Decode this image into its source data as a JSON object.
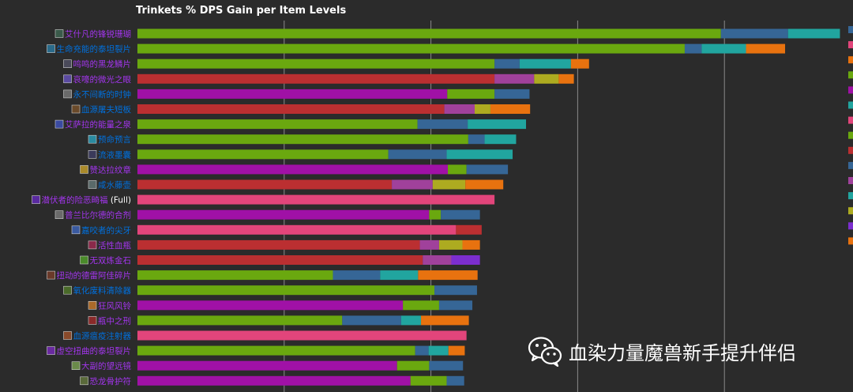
{
  "chart_data": {
    "type": "bar",
    "title": "Trinkets % DPS Gain per Item Levels",
    "categories": [
      "艾什凡的锋锐珊瑚",
      "生命充能的泰坦裂片",
      "鸣鸣的黑龙鳞片",
      "哀嚎的微光之眼",
      "永不间断的时钟",
      "血源屠夫短板",
      "艾萨拉的能量之泉",
      "预命预言",
      "流液墨囊",
      "赞达拉纹章",
      "咸水藤壶",
      "潜伏者的险恶畸福 (Full)",
      "普兰比尔德的合剂",
      "嘉咬者的尖牙",
      "活性血瓶",
      "无双炼金石",
      "扭动的德雷阿佳碎片",
      "氧化废料清除器",
      "狂风风铃",
      "瓶中之刑",
      "血源瘟疫注射器",
      "虚空扭曲的泰坦裂片",
      "大副的望远镜",
      "恐龙骨护符"
    ],
    "label_colors": {
      "epic": "#a335ee",
      "rare": "#0070dd",
      "white": "#ffffff"
    },
    "category_quality": [
      "epic",
      "rare",
      "epic",
      "epic",
      "rare",
      "rare",
      "epic",
      "rare",
      "rare",
      "epic",
      "rare",
      "epic",
      "epic",
      "rare",
      "epic",
      "epic",
      "epic",
      "rare",
      "epic",
      "epic",
      "rare",
      "epic",
      "epic",
      "epic"
    ],
    "category_icon_colors": [
      "#3a5a4a",
      "#2a6a8a",
      "#4a4a5a",
      "#5a4aa0",
      "#6a6a6a",
      "#6a4a2a",
      "#3a4aa0",
      "#2a8aa0",
      "#3a3a5a",
      "#aa8a2a",
      "#5a6a6a",
      "#5a2aa0",
      "#6a6a6a",
      "#3a5aa0",
      "#8a2a4a",
      "#4a8a2a",
      "#6a3a2a",
      "#4a6a2a",
      "#aa6a2a",
      "#8a2a2a",
      "#8a4a2a",
      "#6a2aa0",
      "#6a8a4a",
      "#5a6a3a"
    ],
    "bar_segments": [
      [
        [
          "#6aa80f",
          1.0
        ],
        [
          "#366696",
          0.115
        ],
        [
          "#21a59f",
          0.089
        ]
      ],
      [
        [
          "#6aa80f",
          0.938
        ],
        [
          "#366696",
          0.029
        ],
        [
          "#21a59f",
          0.076
        ],
        [
          "#e8720f",
          0.067
        ]
      ],
      [
        [
          "#6aa80f",
          0.612
        ],
        [
          "#366696",
          0.043
        ],
        [
          "#21a59f",
          0.088
        ],
        [
          "#e8720f",
          0.031
        ]
      ],
      [
        [
          "#bb2f31",
          0.612
        ],
        [
          "#a0419b",
          0.068
        ],
        [
          "#adab20",
          0.042
        ],
        [
          "#e8720f",
          0.026
        ]
      ],
      [
        [
          "#a011a6",
          0.531
        ],
        [
          "#6aa80f",
          0.081
        ],
        [
          "#366696",
          0.06
        ]
      ],
      [
        [
          "#bb2f31",
          0.526
        ],
        [
          "#a0419b",
          0.052
        ],
        [
          "#adab20",
          0.027
        ],
        [
          "#e8720f",
          0.068
        ]
      ],
      [
        [
          "#6aa80f",
          0.48
        ],
        [
          "#366696",
          0.086
        ],
        [
          "#21a59f",
          0.1
        ]
      ],
      [
        [
          "#6aa80f",
          0.567
        ],
        [
          "#366696",
          0.028
        ],
        [
          "#21a59f",
          0.054
        ]
      ],
      [
        [
          "#6aa80f",
          0.43
        ],
        [
          "#366696",
          0.1
        ],
        [
          "#21a59f",
          0.113
        ]
      ],
      [
        [
          "#a011a6",
          0.532
        ],
        [
          "#6aa80f",
          0.032
        ],
        [
          "#366696",
          0.071
        ]
      ],
      [
        [
          "#bb2f31",
          0.436
        ],
        [
          "#a0419b",
          0.07
        ],
        [
          "#adab20",
          0.056
        ],
        [
          "#e8720f",
          0.065
        ]
      ],
      [
        [
          "#e2457b",
          0.612
        ]
      ],
      [
        [
          "#a011a6",
          0.5
        ],
        [
          "#6aa80f",
          0.02
        ],
        [
          "#366696",
          0.067
        ]
      ],
      [
        [
          "#e2457b",
          0.546
        ],
        [
          "#bb2f31",
          0.044
        ]
      ],
      [
        [
          "#bb2f31",
          0.484
        ],
        [
          "#a0419b",
          0.033
        ],
        [
          "#adab20",
          0.04
        ],
        [
          "#e8720f",
          0.03
        ]
      ],
      [
        [
          "#bb2f31",
          0.489
        ],
        [
          "#a0419b",
          0.049
        ],
        [
          "#7c2ecf",
          0.049
        ]
      ],
      [
        [
          "#6aa80f",
          0.335
        ],
        [
          "#366696",
          0.081
        ],
        [
          "#21a59f",
          0.065
        ],
        [
          "#e8720f",
          0.102
        ]
      ],
      [
        [
          "#6aa80f",
          0.509
        ],
        [
          "#366696",
          0.073
        ]
      ],
      [
        [
          "#a011a6",
          0.455
        ],
        [
          "#6aa80f",
          0.062
        ],
        [
          "#366696",
          0.057
        ]
      ],
      [
        [
          "#6aa80f",
          0.351
        ],
        [
          "#366696",
          0.101
        ],
        [
          "#21a59f",
          0.034
        ],
        [
          "#e8720f",
          0.082
        ]
      ],
      [
        [
          "#e2457b",
          0.564
        ]
      ],
      [
        [
          "#6aa80f",
          0.476
        ],
        [
          "#366696",
          0.023
        ],
        [
          "#21a59f",
          0.034
        ],
        [
          "#e8720f",
          0.028
        ]
      ],
      [
        [
          "#a011a6",
          0.445
        ],
        [
          "#6aa80f",
          0.055
        ],
        [
          "#366696",
          0.058
        ]
      ],
      [
        [
          "#a011a6",
          0.468
        ],
        [
          "#6aa80f",
          0.062
        ],
        [
          "#366696",
          0.03
        ]
      ]
    ],
    "gridlines": [
      0.22,
      0.44,
      0.66,
      0.88
    ],
    "legend_swatches": [
      "#366696",
      "#e2457b",
      "#e8720f",
      "#6aa80f",
      "#a011a6",
      "#21a59f",
      "#e2457b",
      "#6aa80f",
      "#bb2f31",
      "#366696",
      "#a0419b",
      "#21a59f",
      "#adab20",
      "#7c2ecf",
      "#e8720f"
    ]
  },
  "watermark": {
    "text": "血染力量魔兽新手提升伴侣",
    "icon": "wechat-icon"
  }
}
